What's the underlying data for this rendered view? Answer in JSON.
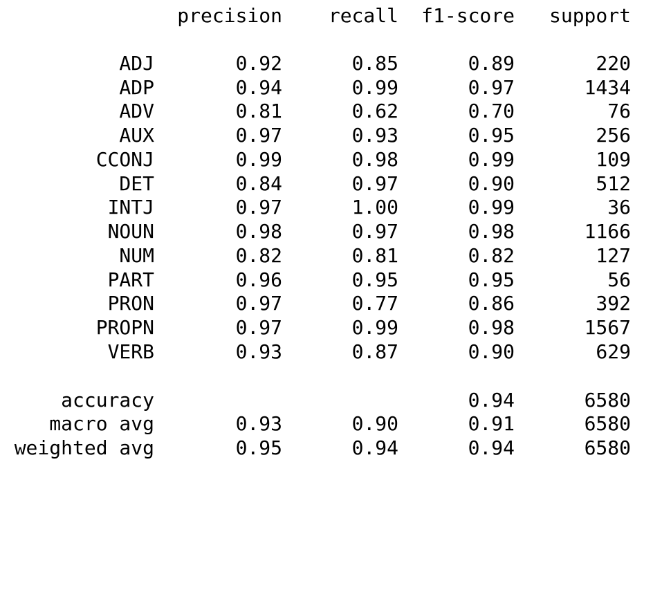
{
  "headers": [
    "precision",
    "recall",
    "f1-score",
    "support"
  ],
  "classes": [
    {
      "label": "ADJ",
      "precision": "0.92",
      "recall": "0.85",
      "f1": "0.89",
      "support": "220"
    },
    {
      "label": "ADP",
      "precision": "0.94",
      "recall": "0.99",
      "f1": "0.97",
      "support": "1434"
    },
    {
      "label": "ADV",
      "precision": "0.81",
      "recall": "0.62",
      "f1": "0.70",
      "support": "76"
    },
    {
      "label": "AUX",
      "precision": "0.97",
      "recall": "0.93",
      "f1": "0.95",
      "support": "256"
    },
    {
      "label": "CCONJ",
      "precision": "0.99",
      "recall": "0.98",
      "f1": "0.99",
      "support": "109"
    },
    {
      "label": "DET",
      "precision": "0.84",
      "recall": "0.97",
      "f1": "0.90",
      "support": "512"
    },
    {
      "label": "INTJ",
      "precision": "0.97",
      "recall": "1.00",
      "f1": "0.99",
      "support": "36"
    },
    {
      "label": "NOUN",
      "precision": "0.98",
      "recall": "0.97",
      "f1": "0.98",
      "support": "1166"
    },
    {
      "label": "NUM",
      "precision": "0.82",
      "recall": "0.81",
      "f1": "0.82",
      "support": "127"
    },
    {
      "label": "PART",
      "precision": "0.96",
      "recall": "0.95",
      "f1": "0.95",
      "support": "56"
    },
    {
      "label": "PRON",
      "precision": "0.97",
      "recall": "0.77",
      "f1": "0.86",
      "support": "392"
    },
    {
      "label": "PROPN",
      "precision": "0.97",
      "recall": "0.99",
      "f1": "0.98",
      "support": "1567"
    },
    {
      "label": "VERB",
      "precision": "0.93",
      "recall": "0.87",
      "f1": "0.90",
      "support": "629"
    }
  ],
  "summary": [
    {
      "label": "accuracy",
      "precision": "",
      "recall": "",
      "f1": "0.94",
      "support": "6580"
    },
    {
      "label": "macro avg",
      "precision": "0.93",
      "recall": "0.90",
      "f1": "0.91",
      "support": "6580"
    },
    {
      "label": "weighted avg",
      "precision": "0.95",
      "recall": "0.94",
      "f1": "0.94",
      "support": "6580"
    }
  ]
}
